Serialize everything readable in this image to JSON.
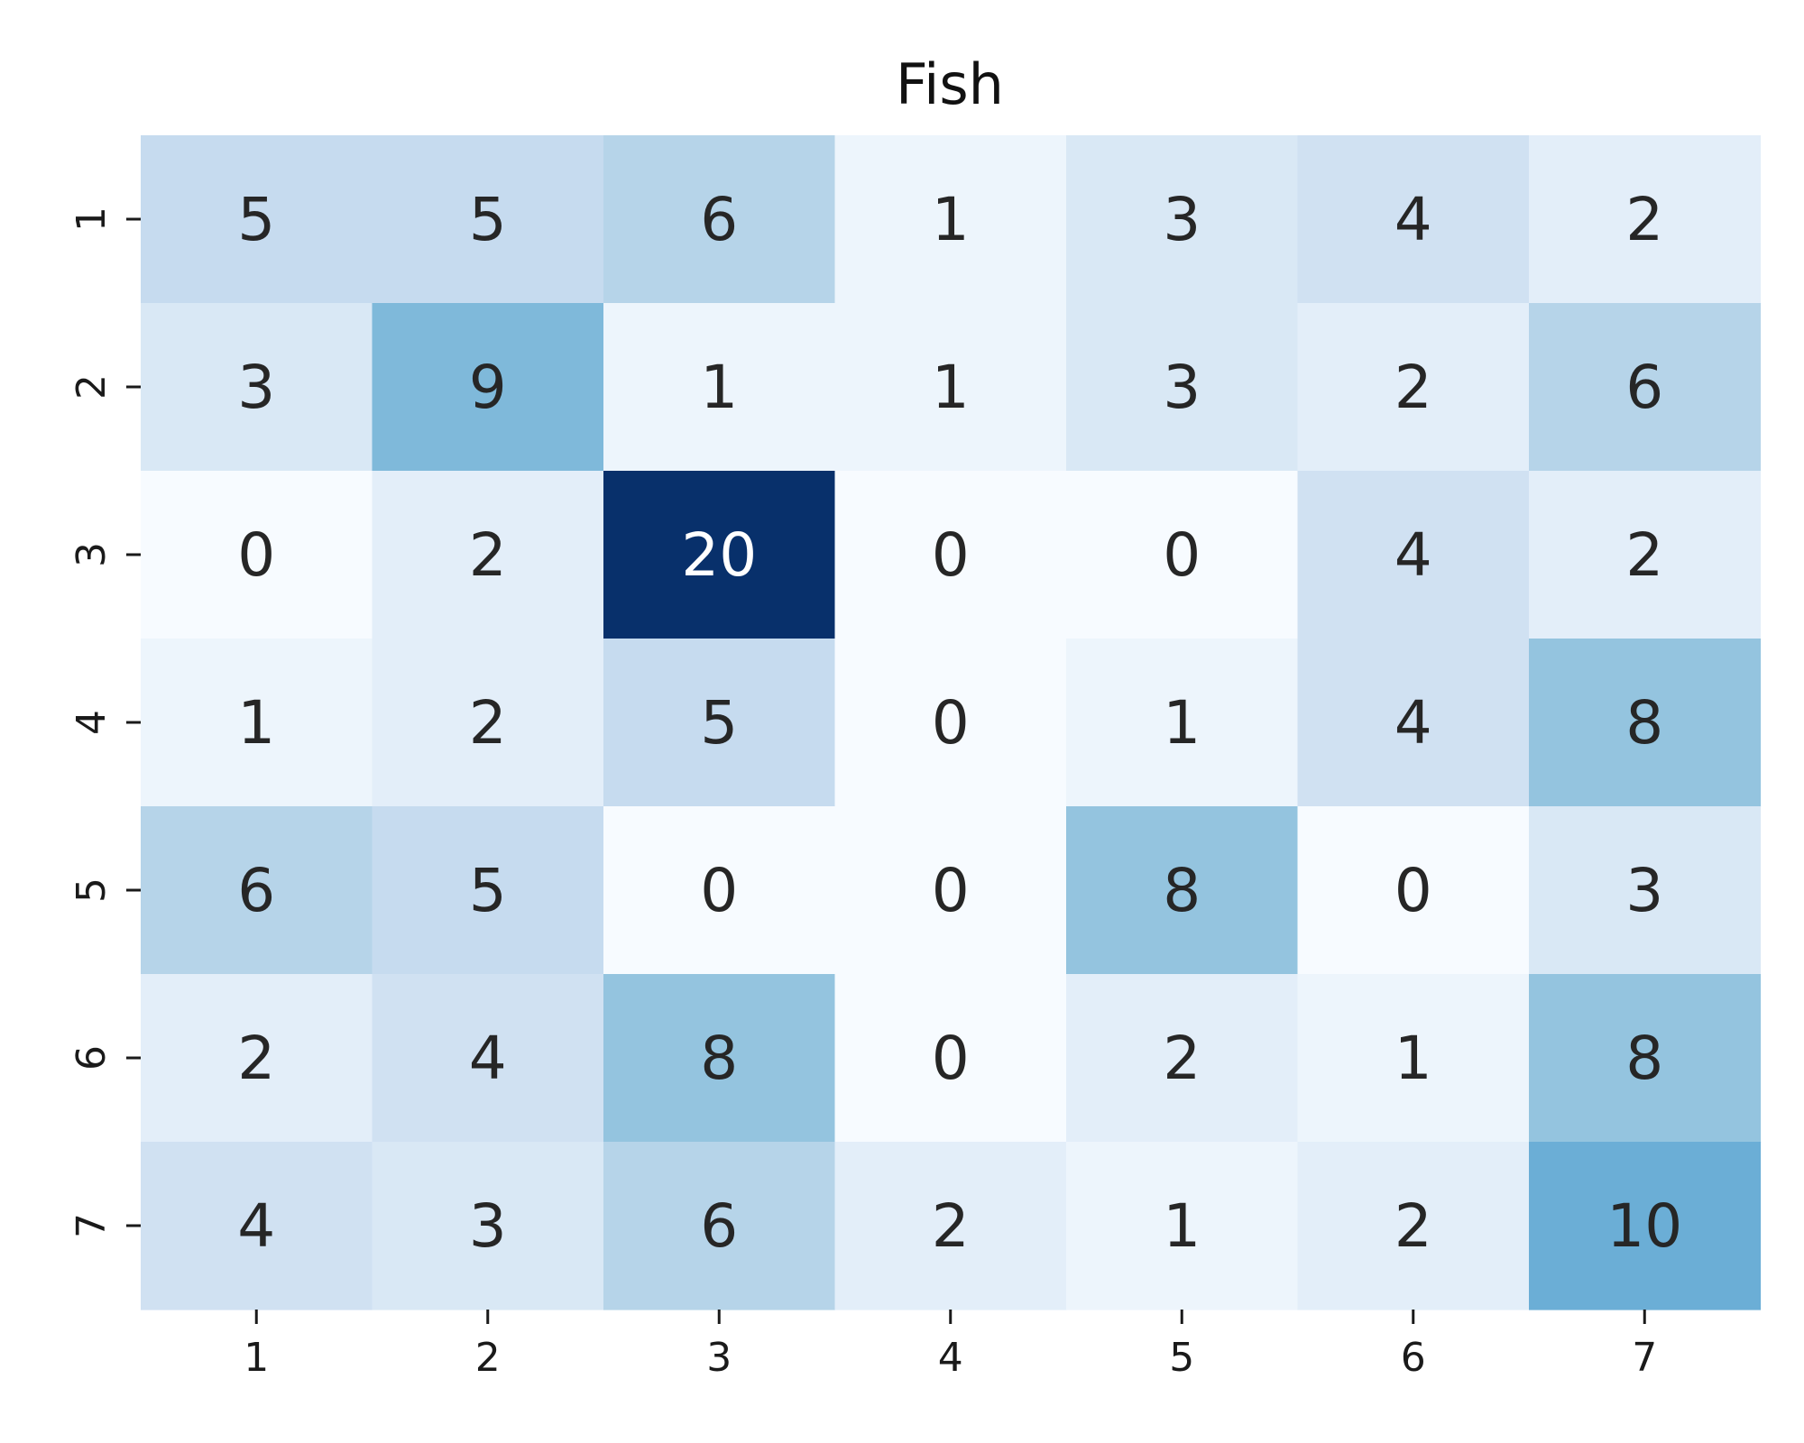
{
  "chart_data": {
    "type": "heatmap",
    "title": "Fish",
    "xlabel": "",
    "ylabel": "",
    "x_categories": [
      "1",
      "2",
      "3",
      "4",
      "5",
      "6",
      "7"
    ],
    "y_categories": [
      "1",
      "2",
      "3",
      "4",
      "5",
      "6",
      "7"
    ],
    "values": [
      [
        5,
        5,
        6,
        1,
        3,
        4,
        2
      ],
      [
        3,
        9,
        1,
        1,
        3,
        2,
        6
      ],
      [
        0,
        2,
        20,
        0,
        0,
        4,
        2
      ],
      [
        1,
        2,
        5,
        0,
        1,
        4,
        8
      ],
      [
        6,
        5,
        0,
        0,
        8,
        0,
        3
      ],
      [
        2,
        4,
        8,
        0,
        2,
        1,
        8
      ],
      [
        4,
        3,
        6,
        2,
        1,
        2,
        10
      ]
    ],
    "vmin": 0,
    "vmax": 20,
    "colormap": "Blues",
    "colorbar": false,
    "annotations": true
  }
}
